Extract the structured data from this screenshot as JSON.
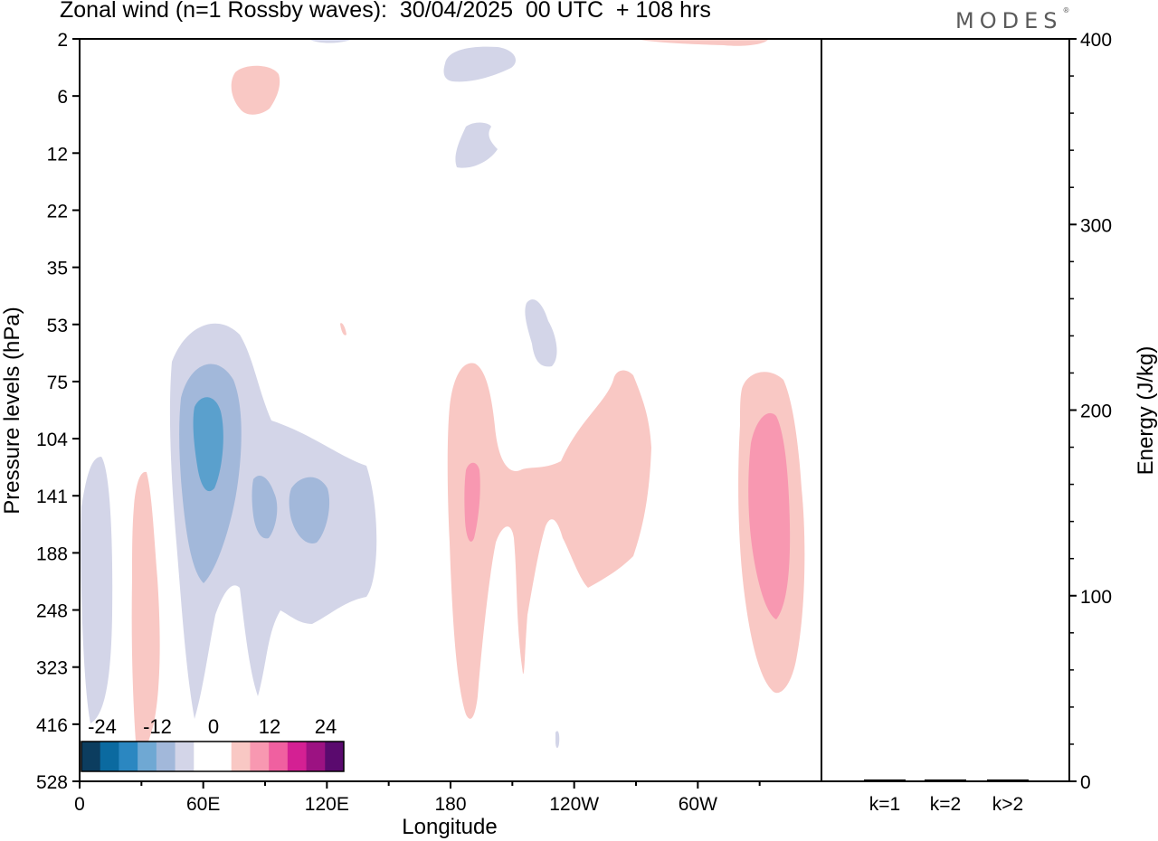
{
  "header": {
    "title": "Zonal wind (n=1 Rossby waves):  30/04/2025  00 UTC  + 108 hrs",
    "logo": "MODES",
    "logo_mark": "®"
  },
  "chart_data": [
    {
      "type": "contour",
      "xlabel": "Longitude",
      "ylabel": "Pressure levels (hPa)",
      "x_ticks": [
        "0",
        "60E",
        "120E",
        "180",
        "120W",
        "60W"
      ],
      "y_ticks": [
        "2",
        "6",
        "12",
        "22",
        "35",
        "53",
        "75",
        "104",
        "141",
        "188",
        "248",
        "323",
        "416",
        "528"
      ],
      "fill_colors": {
        "neg_light": "#d3d5e8",
        "neg_mid": "#a2b8da",
        "neg_dark": "#5aa0cd",
        "pos_light": "#f9c8c4",
        "pos_mid": "#f898b1"
      },
      "colorbar": {
        "labels": [
          "-24",
          "-12",
          "0",
          "12",
          "24"
        ],
        "colors": [
          "#0c3d5f",
          "#0b6aa0",
          "#2b87c1",
          "#6fa8d3",
          "#a2b8da",
          "#d3d5e8",
          "#ffffff",
          "#ffffff",
          "#f9c8c4",
          "#f898b1",
          "#f060a0",
          "#d42093",
          "#9c1282",
          "#5a0a6e"
        ]
      }
    },
    {
      "type": "bar",
      "categories": [
        "k=1",
        "k=2",
        "k>2"
      ],
      "values": [
        1,
        1,
        1
      ],
      "ylabel": "Energy (J/kg)",
      "ylim": [
        0,
        400
      ],
      "y_ticks": [
        "0",
        "100",
        "200",
        "300",
        "400"
      ]
    }
  ]
}
